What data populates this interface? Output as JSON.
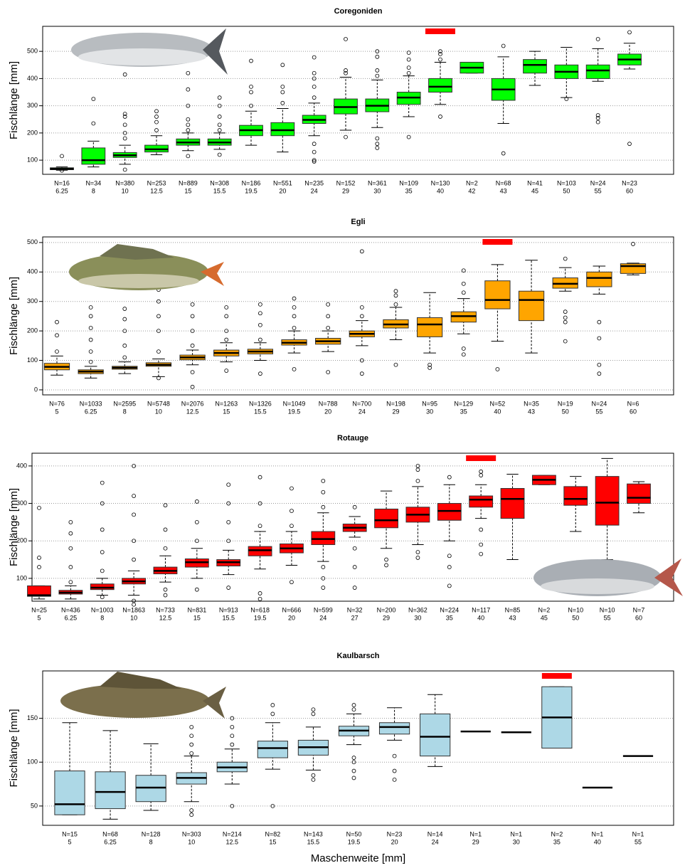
{
  "chart_data": [
    {
      "type": "box",
      "title": "Coregoniden",
      "ylabel": "Fischlänge [mm]",
      "color": "#00ff00",
      "highlight_category": "40",
      "highlight_color": "#ff0000",
      "grid": true,
      "ylim": [
        48,
        592
      ],
      "yticks": [
        100,
        200,
        300,
        400,
        500
      ],
      "categories": [
        "6.25",
        "8",
        "10",
        "12.5",
        "15",
        "15.5",
        "19.5",
        "20",
        "24",
        "29",
        "30",
        "35",
        "40",
        "42",
        "43",
        "45",
        "50",
        "55",
        "60"
      ],
      "n_labels": [
        "N=16",
        "N=34",
        "N=380",
        "N=253",
        "N=889",
        "N=308",
        "N=186",
        "N=551",
        "N=235",
        "N=152",
        "N=361",
        "N=109",
        "N=130",
        "N=2",
        "N=68",
        "N=41",
        "N=103",
        "N=24",
        "N=23"
      ],
      "boxes": [
        {
          "low": 63,
          "q1": 65,
          "median": 68,
          "q3": 72,
          "high": 75,
          "outliers": [
            62,
            115
          ]
        },
        {
          "low": 75,
          "q1": 85,
          "median": 100,
          "q3": 145,
          "high": 170,
          "outliers": [
            235,
            325
          ]
        },
        {
          "low": 85,
          "q1": 110,
          "median": 118,
          "q3": 128,
          "high": 155,
          "outliers": [
            65,
            180,
            200,
            230,
            260,
            270,
            415
          ]
        },
        {
          "low": 120,
          "q1": 130,
          "median": 140,
          "q3": 155,
          "high": 190,
          "outliers": [
            210,
            240,
            260,
            280
          ]
        },
        {
          "low": 135,
          "q1": 155,
          "median": 165,
          "q3": 178,
          "high": 200,
          "outliers": [
            115,
            210,
            230,
            250,
            300,
            360,
            420
          ]
        },
        {
          "low": 140,
          "q1": 155,
          "median": 165,
          "q3": 178,
          "high": 200,
          "outliers": [
            120,
            210,
            230,
            260,
            300,
            330
          ]
        },
        {
          "low": 155,
          "q1": 190,
          "median": 210,
          "q3": 228,
          "high": 280,
          "outliers": [
            300,
            350,
            370,
            465
          ]
        },
        {
          "low": 130,
          "q1": 190,
          "median": 210,
          "q3": 238,
          "high": 290,
          "outliers": [
            310,
            350,
            370,
            450
          ]
        },
        {
          "low": 190,
          "q1": 235,
          "median": 248,
          "q3": 265,
          "high": 310,
          "outliers": [
            95,
            100,
            130,
            160,
            330,
            370,
            400,
            420,
            478
          ]
        },
        {
          "low": 210,
          "q1": 270,
          "median": 295,
          "q3": 325,
          "high": 405,
          "outliers": [
            185,
            420,
            430,
            545
          ]
        },
        {
          "low": 220,
          "q1": 278,
          "median": 300,
          "q3": 325,
          "high": 395,
          "outliers": [
            145,
            160,
            180,
            410,
            430,
            480,
            500
          ]
        },
        {
          "low": 260,
          "q1": 305,
          "median": 330,
          "q3": 350,
          "high": 410,
          "outliers": [
            185,
            420,
            440,
            470,
            495
          ]
        },
        {
          "low": 305,
          "q1": 350,
          "median": 370,
          "q3": 400,
          "high": 460,
          "outliers": [
            260,
            470,
            490,
            500
          ]
        },
        {
          "low": 420,
          "q1": 420,
          "median": 440,
          "q3": 460,
          "high": 460,
          "outliers": []
        },
        {
          "low": 235,
          "q1": 320,
          "median": 360,
          "q3": 400,
          "high": 480,
          "outliers": [
            125,
            520
          ]
        },
        {
          "low": 375,
          "q1": 420,
          "median": 450,
          "q3": 470,
          "high": 500,
          "outliers": []
        },
        {
          "low": 330,
          "q1": 400,
          "median": 425,
          "q3": 450,
          "high": 515,
          "outliers": [
            325
          ]
        },
        {
          "low": 390,
          "q1": 400,
          "median": 430,
          "q3": 450,
          "high": 510,
          "outliers": [
            240,
            255,
            265,
            545
          ]
        },
        {
          "low": 435,
          "q1": 450,
          "median": 470,
          "q3": 490,
          "high": 530,
          "outliers": [
            160,
            570
          ]
        }
      ]
    },
    {
      "type": "box",
      "title": "Egli",
      "ylabel": "Fischlänge [mm]",
      "color": "#ffa500",
      "highlight_category": "40",
      "highlight_color": "#ff0000",
      "grid": true,
      "ylim": [
        -17,
        519
      ],
      "yticks": [
        0,
        100,
        200,
        300,
        400,
        500
      ],
      "categories": [
        "5",
        "6.25",
        "8",
        "10",
        "12.5",
        "15",
        "15.5",
        "19.5",
        "20",
        "24",
        "29",
        "30",
        "35",
        "40",
        "43",
        "50",
        "55",
        "60"
      ],
      "n_labels": [
        "N=76",
        "N=1033",
        "N=2595",
        "N=5748",
        "N=2076",
        "N=1263",
        "N=1326",
        "N=1049",
        "N=788",
        "N=700",
        "N=198",
        "N=95",
        "N=129",
        "N=52",
        "N=35",
        "N=19",
        "N=24",
        "N=6"
      ],
      "boxes": [
        {
          "low": 50,
          "q1": 68,
          "median": 78,
          "q3": 90,
          "high": 115,
          "outliers": [
            130,
            185,
            230
          ]
        },
        {
          "low": 40,
          "q1": 55,
          "median": 62,
          "q3": 68,
          "high": 80,
          "outliers": [
            95,
            130,
            170,
            210,
            250,
            280
          ]
        },
        {
          "low": 55,
          "q1": 70,
          "median": 75,
          "q3": 80,
          "high": 95,
          "outliers": [
            110,
            150,
            200,
            240,
            275
          ]
        },
        {
          "low": 45,
          "q1": 80,
          "median": 85,
          "q3": 92,
          "high": 105,
          "outliers": [
            40,
            130,
            200,
            250,
            300,
            340,
            430
          ]
        },
        {
          "low": 85,
          "q1": 102,
          "median": 110,
          "q3": 118,
          "high": 135,
          "outliers": [
            10,
            60,
            150,
            200,
            250,
            290
          ]
        },
        {
          "low": 95,
          "q1": 115,
          "median": 125,
          "q3": 135,
          "high": 160,
          "outliers": [
            65,
            170,
            200,
            250,
            280
          ]
        },
        {
          "low": 100,
          "q1": 122,
          "median": 130,
          "q3": 138,
          "high": 160,
          "outliers": [
            55,
            170,
            220,
            260,
            290
          ]
        },
        {
          "low": 125,
          "q1": 152,
          "median": 160,
          "q3": 170,
          "high": 200,
          "outliers": [
            70,
            210,
            250,
            280,
            310
          ]
        },
        {
          "low": 130,
          "q1": 155,
          "median": 165,
          "q3": 175,
          "high": 200,
          "outliers": [
            60,
            210,
            250,
            290
          ]
        },
        {
          "low": 150,
          "q1": 180,
          "median": 190,
          "q3": 200,
          "high": 235,
          "outliers": [
            55,
            100,
            250,
            280,
            470
          ]
        },
        {
          "low": 170,
          "q1": 210,
          "median": 222,
          "q3": 238,
          "high": 280,
          "outliers": [
            85,
            290,
            320,
            335
          ]
        },
        {
          "low": 125,
          "q1": 180,
          "median": 222,
          "q3": 245,
          "high": 330,
          "outliers": [
            75,
            85
          ]
        },
        {
          "low": 190,
          "q1": 230,
          "median": 250,
          "q3": 265,
          "high": 310,
          "outliers": [
            120,
            140,
            330,
            360,
            405
          ]
        },
        {
          "low": 165,
          "q1": 275,
          "median": 305,
          "q3": 370,
          "high": 425,
          "outliers": [
            70
          ]
        },
        {
          "low": 125,
          "q1": 235,
          "median": 305,
          "q3": 335,
          "high": 440,
          "outliers": []
        },
        {
          "low": 335,
          "q1": 345,
          "median": 360,
          "q3": 380,
          "high": 415,
          "outliers": [
            165,
            230,
            245,
            265,
            445
          ]
        },
        {
          "low": 325,
          "q1": 350,
          "median": 380,
          "q3": 400,
          "high": 420,
          "outliers": [
            55,
            85,
            175,
            230
          ]
        },
        {
          "low": 390,
          "q1": 395,
          "median": 420,
          "q3": 428,
          "high": 430,
          "outliers": [
            495
          ]
        }
      ]
    },
    {
      "type": "box",
      "title": "Rotauge",
      "ylabel": "Fischlänge [mm]",
      "color": "#ff0000",
      "highlight_category": "40",
      "highlight_color": "#ff0000",
      "grid": true,
      "ylim": [
        39,
        434
      ],
      "yticks": [
        100,
        200,
        300,
        400
      ],
      "categories": [
        "5",
        "6.25",
        "8",
        "10",
        "12.5",
        "15",
        "15.5",
        "19.5",
        "20",
        "24",
        "27",
        "29",
        "30",
        "35",
        "40",
        "43",
        "45",
        "50",
        "55",
        "60"
      ],
      "n_labels": [
        "N=25",
        "N=436",
        "N=1003",
        "N=1863",
        "N=733",
        "N=831",
        "N=913",
        "N=618",
        "N=666",
        "N=599",
        "N=32",
        "N=200",
        "N=362",
        "N=224",
        "N=117",
        "N=85",
        "N=2",
        "N=10",
        "N=10",
        "N=7"
      ],
      "boxes": [
        {
          "low": 45,
          "q1": 52,
          "median": 55,
          "q3": 80,
          "high": 80,
          "outliers": [
            130,
            155,
            288
          ]
        },
        {
          "low": 45,
          "q1": 58,
          "median": 62,
          "q3": 68,
          "high": 80,
          "outliers": [
            90,
            130,
            180,
            220,
            250
          ]
        },
        {
          "low": 55,
          "q1": 70,
          "median": 75,
          "q3": 85,
          "high": 100,
          "outliers": [
            50,
            120,
            170,
            230,
            300,
            355
          ]
        },
        {
          "low": 55,
          "q1": 85,
          "median": 92,
          "q3": 100,
          "high": 120,
          "outliers": [
            30,
            40,
            150,
            200,
            270,
            320,
            400
          ]
        },
        {
          "low": 90,
          "q1": 112,
          "median": 120,
          "q3": 130,
          "high": 160,
          "outliers": [
            55,
            70,
            180,
            230,
            295
          ]
        },
        {
          "low": 100,
          "q1": 130,
          "median": 143,
          "q3": 152,
          "high": 180,
          "outliers": [
            70,
            200,
            250,
            305
          ]
        },
        {
          "low": 110,
          "q1": 133,
          "median": 143,
          "q3": 150,
          "high": 175,
          "outliers": [
            75,
            200,
            250,
            300,
            350
          ]
        },
        {
          "low": 125,
          "q1": 160,
          "median": 175,
          "q3": 185,
          "high": 225,
          "outliers": [
            45,
            60,
            240,
            300,
            370
          ]
        },
        {
          "low": 135,
          "q1": 168,
          "median": 180,
          "q3": 192,
          "high": 225,
          "outliers": [
            90,
            240,
            280,
            340
          ]
        },
        {
          "low": 145,
          "q1": 190,
          "median": 205,
          "q3": 225,
          "high": 275,
          "outliers": [
            75,
            100,
            130,
            290,
            330,
            360
          ]
        },
        {
          "low": 210,
          "q1": 225,
          "median": 235,
          "q3": 245,
          "high": 265,
          "outliers": [
            75,
            130,
            180,
            290
          ]
        },
        {
          "low": 180,
          "q1": 235,
          "median": 255,
          "q3": 285,
          "high": 333,
          "outliers": [
            135,
            150
          ]
        },
        {
          "low": 190,
          "q1": 250,
          "median": 270,
          "q3": 290,
          "high": 345,
          "outliers": [
            155,
            170,
            360,
            390,
            400
          ]
        },
        {
          "low": 200,
          "q1": 255,
          "median": 280,
          "q3": 300,
          "high": 350,
          "outliers": [
            80,
            130,
            160,
            370
          ]
        },
        {
          "low": 260,
          "q1": 290,
          "median": 310,
          "q3": 320,
          "high": 350,
          "outliers": [
            165,
            190,
            230,
            375,
            385
          ]
        },
        {
          "low": 150,
          "q1": 260,
          "median": 312,
          "q3": 340,
          "high": 378,
          "outliers": []
        },
        {
          "low": 350,
          "q1": 350,
          "median": 363,
          "q3": 375,
          "high": 375,
          "outliers": []
        },
        {
          "low": 225,
          "q1": 295,
          "median": 312,
          "q3": 345,
          "high": 372,
          "outliers": []
        },
        {
          "low": 150,
          "q1": 242,
          "median": 302,
          "q3": 372,
          "high": 420,
          "outliers": []
        },
        {
          "low": 275,
          "q1": 300,
          "median": 315,
          "q3": 352,
          "high": 358,
          "outliers": []
        }
      ]
    },
    {
      "type": "box",
      "title": "Kaulbarsch",
      "ylabel": "Fischlänge [mm]",
      "xlabel": "Maschenweite [mm]",
      "color": "#add8e6",
      "highlight_category": "35",
      "highlight_color": "#ff0000",
      "grid": true,
      "ylim": [
        28,
        204
      ],
      "yticks": [
        50,
        100,
        150
      ],
      "categories": [
        "5",
        "6.25",
        "8",
        "10",
        "12.5",
        "15",
        "15.5",
        "19.5",
        "20",
        "24",
        "29",
        "30",
        "35",
        "40",
        "55"
      ],
      "n_labels": [
        "N=15",
        "N=68",
        "N=128",
        "N=303",
        "N=214",
        "N=82",
        "N=143",
        "N=50",
        "N=23",
        "N=14",
        "N=1",
        "N=1",
        "N=2",
        "N=1",
        "N=1"
      ],
      "boxes": [
        {
          "low": 40,
          "q1": 40,
          "median": 52,
          "q3": 90,
          "high": 145,
          "outliers": []
        },
        {
          "low": 35,
          "q1": 47,
          "median": 66,
          "q3": 89,
          "high": 136,
          "outliers": []
        },
        {
          "low": 45,
          "q1": 55,
          "median": 71,
          "q3": 85,
          "high": 121,
          "outliers": []
        },
        {
          "low": 55,
          "q1": 75,
          "median": 82,
          "q3": 88,
          "high": 107,
          "outliers": [
            40,
            45,
            110,
            120,
            130,
            140,
            176
          ]
        },
        {
          "low": 75,
          "q1": 89,
          "median": 94,
          "q3": 100,
          "high": 115,
          "outliers": [
            50,
            120,
            130,
            140,
            150
          ]
        },
        {
          "low": 92,
          "q1": 105,
          "median": 116,
          "q3": 124,
          "high": 145,
          "outliers": [
            50,
            155,
            165
          ]
        },
        {
          "low": 91,
          "q1": 108,
          "median": 117,
          "q3": 125,
          "high": 140,
          "outliers": [
            80,
            85,
            155,
            160
          ]
        },
        {
          "low": 120,
          "q1": 130,
          "median": 136,
          "q3": 141,
          "high": 155,
          "outliers": [
            82,
            90,
            100,
            105,
            160,
            165
          ]
        },
        {
          "low": 125,
          "q1": 132,
          "median": 140,
          "q3": 145,
          "high": 162,
          "outliers": [
            80,
            90,
            107
          ]
        },
        {
          "low": 95,
          "q1": 107,
          "median": 129,
          "q3": 155,
          "high": 177,
          "outliers": []
        },
        {
          "low": 135,
          "q1": 135,
          "median": 135,
          "q3": 135,
          "high": 135,
          "outliers": []
        },
        {
          "low": 134,
          "q1": 134,
          "median": 134,
          "q3": 134,
          "high": 134,
          "outliers": []
        },
        {
          "low": 116,
          "q1": 116,
          "median": 151,
          "q3": 186,
          "high": 186,
          "outliers": []
        },
        {
          "low": 71,
          "q1": 71,
          "median": 71,
          "q3": 71,
          "high": 71,
          "outliers": []
        },
        {
          "low": 107,
          "q1": 107,
          "median": 107,
          "q3": 107,
          "high": 107,
          "outliers": []
        }
      ]
    }
  ]
}
